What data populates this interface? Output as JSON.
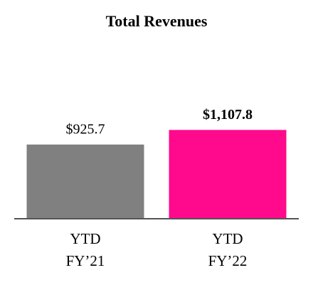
{
  "chart_data": {
    "type": "bar",
    "title": "Total Revenues",
    "categories": [
      [
        "YTD",
        "FY’21"
      ],
      [
        "YTD",
        "FY’22"
      ]
    ],
    "values": [
      925.7,
      1107.8
    ],
    "value_labels": [
      "$925.7",
      "$1,107.8"
    ],
    "colors": [
      "#808080",
      "#ff0a8c"
    ]
  }
}
